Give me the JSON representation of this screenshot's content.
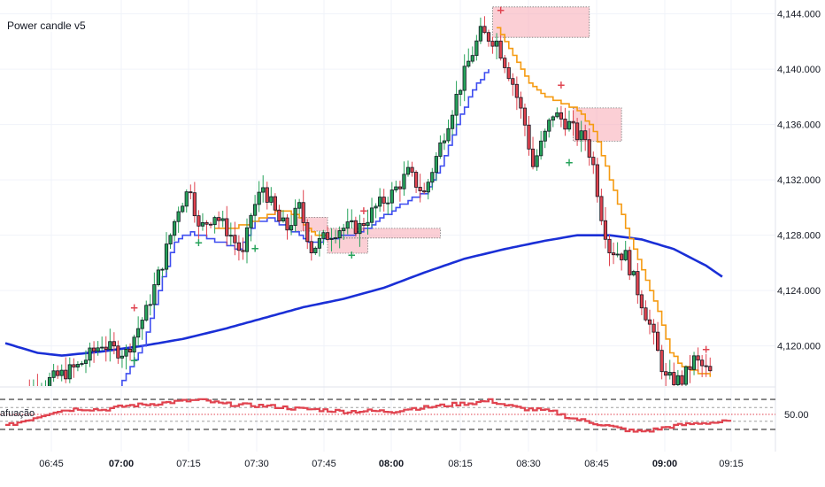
{
  "indicator_title": "Power candle v5",
  "oscillator_title": "afuação",
  "colors": {
    "bull": "#26a25a",
    "bear": "#e0434f",
    "trail_up": "#3f4ef0",
    "trail_down": "#f59b12",
    "ma": "#1a2fd6",
    "osc": "#e0434f",
    "zone": "#f8a7b2"
  },
  "chart_data": [
    {
      "type": "candlestick",
      "title": "",
      "y_ticks": [
        "4,144.000",
        "4,140.000",
        "4,136.000",
        "4,132.000",
        "4,128.000",
        "4,124.000",
        "4,120.000"
      ],
      "y_tick_values": [
        4144,
        4140,
        4136,
        4132,
        4128,
        4124,
        4120
      ],
      "x_ticks": [
        {
          "label": "06:45",
          "bold": false
        },
        {
          "label": "07:00",
          "bold": true
        },
        {
          "label": "07:15",
          "bold": false
        },
        {
          "label": "07:30",
          "bold": false
        },
        {
          "label": "07:45",
          "bold": false
        },
        {
          "label": "08:00",
          "bold": true
        },
        {
          "label": "08:15",
          "bold": false
        },
        {
          "label": "08:30",
          "bold": false
        },
        {
          "label": "08:45",
          "bold": false
        },
        {
          "label": "09:00",
          "bold": true
        },
        {
          "label": "09:15",
          "bold": false
        }
      ],
      "close_path": [
        [
          0,
          4116
        ],
        [
          18,
          4118.5
        ],
        [
          24,
          4120.2
        ],
        [
          26,
          4119.8
        ],
        [
          30,
          4119.5
        ],
        [
          35,
          4122.5
        ],
        [
          39,
          4126
        ],
        [
          43,
          4130
        ],
        [
          46,
          4131.5
        ],
        [
          48,
          4128.4
        ],
        [
          52,
          4129.5
        ],
        [
          56,
          4128
        ],
        [
          59,
          4126.5
        ],
        [
          61,
          4129.5
        ],
        [
          64,
          4131.5
        ],
        [
          68,
          4129
        ],
        [
          70,
          4128.5
        ],
        [
          73,
          4130
        ],
        [
          76,
          4127
        ],
        [
          80,
          4128
        ],
        [
          83,
          4128.5
        ],
        [
          88,
          4128.6
        ],
        [
          92,
          4130
        ],
        [
          96,
          4131
        ],
        [
          100,
          4132.5
        ],
        [
          104,
          4131
        ],
        [
          108,
          4134.5
        ],
        [
          112,
          4138
        ],
        [
          115,
          4140.5
        ],
        [
          118,
          4142.6
        ],
        [
          122,
          4142
        ],
        [
          126,
          4139
        ],
        [
          129,
          4136
        ],
        [
          131,
          4133
        ],
        [
          133,
          4134.5
        ],
        [
          136,
          4136.8
        ],
        [
          140,
          4136
        ],
        [
          142,
          4135.2
        ],
        [
          144,
          4135
        ],
        [
          146,
          4133
        ],
        [
          148,
          4129.5
        ],
        [
          150,
          4127
        ],
        [
          154,
          4126.5
        ],
        [
          157,
          4124
        ],
        [
          160,
          4121.5
        ],
        [
          162,
          4119.5
        ],
        [
          164,
          4117.6
        ],
        [
          168,
          4117.5
        ],
        [
          171,
          4119
        ],
        [
          173,
          4118.5
        ],
        [
          175,
          4118
        ]
      ],
      "trail_up_path": [
        [
          0,
          4112
        ],
        [
          20,
          4114
        ],
        [
          28,
          4117
        ],
        [
          34,
          4120
        ],
        [
          38,
          4124
        ],
        [
          42,
          4127.6
        ],
        [
          46,
          4128.2
        ],
        [
          58,
          4127
        ],
        [
          62,
          4129
        ],
        [
          66,
          4129.2
        ],
        [
          70,
          4128.5
        ],
        [
          76,
          4127.4
        ],
        [
          84,
          4128
        ],
        [
          88,
          4128.2
        ],
        [
          92,
          4129
        ],
        [
          96,
          4129.8
        ],
        [
          100,
          4130.5
        ],
        [
          104,
          4131
        ],
        [
          108,
          4133
        ],
        [
          112,
          4136
        ],
        [
          116,
          4138.5
        ],
        [
          120,
          4140
        ]
      ],
      "trail_down_path": [
        [
          52,
          4128.5
        ],
        [
          56,
          4128.4
        ],
        [
          68,
          4129.8
        ],
        [
          72,
          4129.5
        ],
        [
          76,
          4128.2
        ],
        [
          80,
          4127.8
        ],
        [
          122,
          4143
        ],
        [
          126,
          4141
        ],
        [
          130,
          4139
        ],
        [
          134,
          4138
        ],
        [
          138,
          4137.5
        ],
        [
          142,
          4137
        ],
        [
          146,
          4135.5
        ],
        [
          150,
          4132
        ],
        [
          154,
          4128.5
        ],
        [
          158,
          4125.5
        ],
        [
          162,
          4122.5
        ],
        [
          165,
          4119.6
        ],
        [
          168,
          4118.5
        ],
        [
          175,
          4117.8
        ]
      ],
      "ma_path": [
        [
          0,
          4120.2
        ],
        [
          8,
          4119.5
        ],
        [
          14,
          4119.3
        ],
        [
          24,
          4119.6
        ],
        [
          34,
          4120
        ],
        [
          44,
          4120.5
        ],
        [
          54,
          4121.2
        ],
        [
          64,
          4122
        ],
        [
          74,
          4122.8
        ],
        [
          84,
          4123.4
        ],
        [
          94,
          4124.2
        ],
        [
          104,
          4125.3
        ],
        [
          114,
          4126.3
        ],
        [
          124,
          4127
        ],
        [
          134,
          4127.6
        ],
        [
          142,
          4128
        ],
        [
          150,
          4128
        ],
        [
          158,
          4127.7
        ],
        [
          166,
          4127
        ],
        [
          174,
          4125.8
        ],
        [
          178,
          4125
        ]
      ],
      "zones": [
        {
          "start": 121,
          "end": 145,
          "low": 4142.3,
          "high": 4144.5
        },
        {
          "start": 141,
          "end": 153,
          "low": 4134.8,
          "high": 4137.2
        },
        {
          "start": 72,
          "end": 80,
          "low": 4128.3,
          "high": 4129.3
        },
        {
          "start": 80,
          "end": 108,
          "low": 4127.8,
          "high": 4128.5
        },
        {
          "start": 80,
          "end": 90,
          "low": 4126.7,
          "high": 4127.8
        }
      ],
      "signals_sell": [
        [
          32,
          4122.5
        ],
        [
          89,
          4129.5
        ],
        [
          138,
          4138.6
        ],
        [
          123,
          4144
        ],
        [
          174,
          4119.5
        ]
      ],
      "signals_buy": [
        [
          32,
          4118.7
        ],
        [
          62,
          4126.8
        ],
        [
          86,
          4126.3
        ],
        [
          140,
          4133
        ],
        [
          48,
          4127.2
        ]
      ]
    },
    {
      "type": "line",
      "title": "afuação",
      "level_label": "50.00",
      "level": 50,
      "bands": [
        76,
        62,
        38,
        24
      ],
      "series": [
        {
          "x": [
            0,
            6,
            12,
            18,
            24,
            30,
            36,
            42,
            48,
            54,
            60,
            66,
            72,
            78,
            84,
            90,
            96,
            100,
            104,
            108,
            112,
            116,
            120,
            124,
            128,
            132,
            136,
            140,
            144,
            148,
            152,
            156,
            160,
            164,
            168,
            172,
            176,
            180,
            184,
            188
          ],
          "values": [
            30,
            42,
            55,
            60,
            58,
            65,
            68,
            72,
            75,
            68,
            66,
            64,
            60,
            58,
            55,
            56,
            55,
            60,
            62,
            65,
            68,
            70,
            74,
            66,
            60,
            58,
            54,
            44,
            38,
            32,
            26,
            20,
            22,
            28,
            32,
            35,
            36,
            38,
            40,
            38
          ]
        }
      ]
    }
  ]
}
